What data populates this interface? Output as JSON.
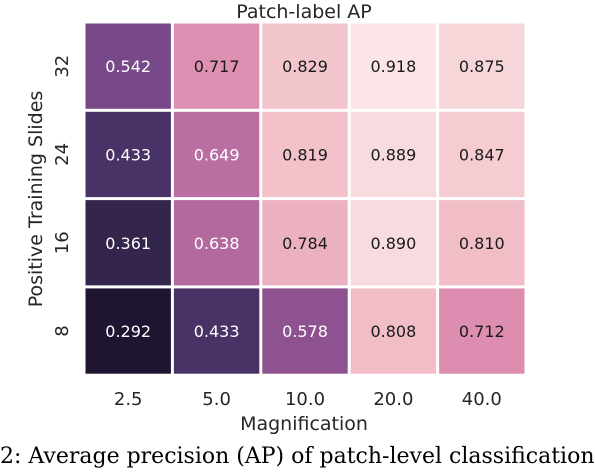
{
  "chart_data": {
    "type": "heatmap",
    "title": "Patch-label AP",
    "xlabel": "Magnification",
    "ylabel": "Positive Training Slides",
    "x_categories": [
      "2.5",
      "5.0",
      "10.0",
      "20.0",
      "40.0"
    ],
    "y_categories": [
      "32",
      "24",
      "16",
      "8"
    ],
    "values": [
      [
        0.542,
        0.717,
        0.829,
        0.918,
        0.875
      ],
      [
        0.433,
        0.649,
        0.819,
        0.889,
        0.847
      ],
      [
        0.361,
        0.638,
        0.784,
        0.89,
        0.81
      ],
      [
        0.292,
        0.433,
        0.578,
        0.808,
        0.712
      ]
    ],
    "value_labels": [
      [
        "0.542",
        "0.717",
        "0.829",
        "0.918",
        "0.875"
      ],
      [
        "0.433",
        "0.649",
        "0.819",
        "0.889",
        "0.847"
      ],
      [
        "0.361",
        "0.638",
        "0.784",
        "0.890",
        "0.810"
      ],
      [
        "0.292",
        "0.433",
        "0.578",
        "0.808",
        "0.712"
      ]
    ],
    "colormap": [
      "#1e1530",
      "#3d2c58",
      "#5e3f7e",
      "#a05896",
      "#dd8db0",
      "#f2c0c8",
      "#fbe6e8"
    ],
    "value_range": [
      0.29,
      0.92
    ],
    "label_colors": {
      "dark": "#ffffff",
      "light": "#1a1a1a"
    }
  },
  "caption": "2: Average precision (AP) of patch-level classification"
}
